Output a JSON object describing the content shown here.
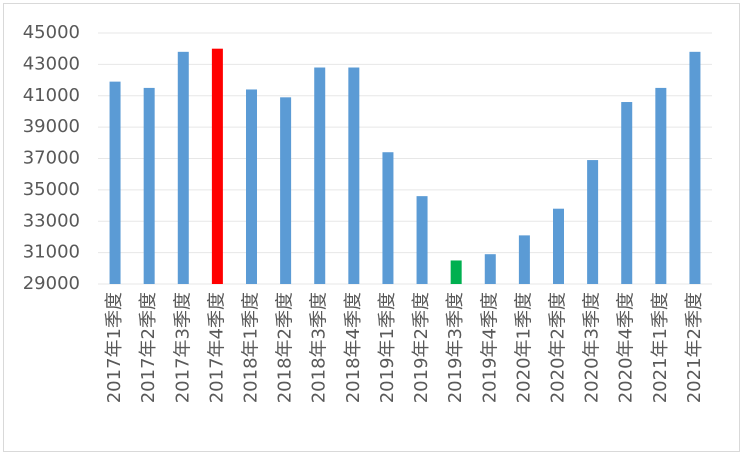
{
  "chart_data": {
    "type": "bar",
    "categories": [
      "2017年1季度",
      "2017年2季度",
      "2017年3季度",
      "2017年4季度",
      "2018年1季度",
      "2018年2季度",
      "2018年3季度",
      "2018年4季度",
      "2019年1季度",
      "2019年2季度",
      "2019年3季度",
      "2019年4季度",
      "2020年1季度",
      "2020年2季度",
      "2020年3季度",
      "2020年4季度",
      "2021年1季度",
      "2021年2季度"
    ],
    "values": [
      41900,
      41500,
      43800,
      44000,
      41400,
      40900,
      42800,
      42800,
      37400,
      34600,
      30500,
      30900,
      32100,
      33800,
      36900,
      40600,
      41500,
      43800
    ],
    "colors": [
      "#5b9bd5",
      "#5b9bd5",
      "#5b9bd5",
      "#ff0000",
      "#5b9bd5",
      "#5b9bd5",
      "#5b9bd5",
      "#5b9bd5",
      "#5b9bd5",
      "#5b9bd5",
      "#00b050",
      "#5b9bd5",
      "#5b9bd5",
      "#5b9bd5",
      "#5b9bd5",
      "#5b9bd5",
      "#5b9bd5",
      "#5b9bd5"
    ],
    "ylim": [
      29000,
      45000
    ],
    "yticks": [
      29000,
      31000,
      33000,
      35000,
      37000,
      39000,
      41000,
      43000,
      45000
    ],
    "grid": true
  }
}
